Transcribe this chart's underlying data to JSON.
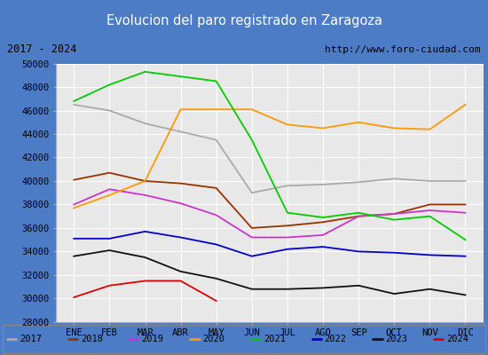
{
  "title": "Evolucion del paro registrado en Zaragoza",
  "subtitle_left": "2017 - 2024",
  "subtitle_right": "http://www.foro-ciudad.com",
  "months": [
    "ENE",
    "FEB",
    "MAR",
    "ABR",
    "MAY",
    "JUN",
    "JUL",
    "AGO",
    "SEP",
    "OCT",
    "NOV",
    "DIC"
  ],
  "ylim": [
    28000,
    50000
  ],
  "yticks": [
    28000,
    30000,
    32000,
    34000,
    36000,
    38000,
    40000,
    42000,
    44000,
    46000,
    48000,
    50000
  ],
  "series": {
    "2017": {
      "color": "#aaaaaa",
      "data": [
        46500,
        46000,
        44900,
        44200,
        43500,
        39000,
        39600,
        39700,
        39900,
        40200,
        40000,
        40000
      ]
    },
    "2018": {
      "color": "#993300",
      "data": [
        40100,
        40700,
        40000,
        39800,
        39400,
        36000,
        36200,
        36500,
        37000,
        37200,
        38000,
        38000
      ]
    },
    "2019": {
      "color": "#cc33cc",
      "data": [
        38000,
        39300,
        38800,
        38100,
        37100,
        35200,
        35200,
        35400,
        37000,
        37200,
        37500,
        37300
      ]
    },
    "2020": {
      "color": "#ff9900",
      "data": [
        37700,
        38800,
        40000,
        46100,
        46100,
        46100,
        44800,
        44500,
        45000,
        44500,
        44400,
        46500
      ]
    },
    "2021": {
      "color": "#00cc00",
      "data": [
        46800,
        48200,
        49300,
        48900,
        48500,
        43500,
        37300,
        36900,
        37300,
        36700,
        37000,
        35000
      ]
    },
    "2022": {
      "color": "#0000cc",
      "data": [
        35100,
        35100,
        35700,
        35200,
        34600,
        33600,
        34200,
        34400,
        34000,
        33900,
        33700,
        33600
      ]
    },
    "2023": {
      "color": "#111111",
      "data": [
        33600,
        34100,
        33500,
        32300,
        31700,
        30800,
        30800,
        30900,
        31100,
        30400,
        30800,
        30300
      ]
    },
    "2024": {
      "color": "#dd0000",
      "data": [
        30100,
        31100,
        31500,
        31500,
        29800,
        null,
        null,
        null,
        null,
        null,
        null,
        null
      ]
    }
  },
  "title_bg": "#4d7cc7",
  "title_color": "#ffffff",
  "subtitle_bg": "#f0f0f0",
  "plot_bg": "#e8e8e8",
  "grid_color": "#ffffff",
  "legend_years": [
    "2017",
    "2018",
    "2019",
    "2020",
    "2021",
    "2022",
    "2023",
    "2024"
  ]
}
